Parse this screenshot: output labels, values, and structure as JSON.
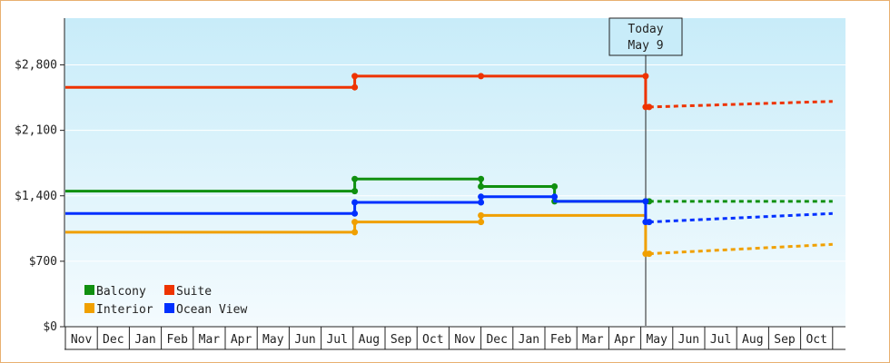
{
  "chart_data": {
    "type": "line",
    "title": "",
    "xlabel": "",
    "ylabel": "",
    "y_ticks": [
      "$0",
      "$700",
      "$1,400",
      "$2,100",
      "$2,800"
    ],
    "ylim": [
      0,
      3300
    ],
    "x_months": [
      "Nov",
      "Dec",
      "Jan",
      "Feb",
      "Mar",
      "Apr",
      "May",
      "Jun",
      "Jul",
      "Aug",
      "Sep",
      "Oct",
      "Nov",
      "Dec",
      "Jan",
      "Feb",
      "Mar",
      "Apr",
      "May",
      "Jun",
      "Jul",
      "Aug",
      "Sep",
      "Oct"
    ],
    "today": {
      "line1": "Today",
      "line2": "May 9",
      "month_index": 18.26
    },
    "legend_position": "bottom-left",
    "grid": "horizontal",
    "series": [
      {
        "name": "Balcony",
        "color": "#109010",
        "history": [
          [
            0,
            1450
          ],
          [
            9.05,
            1450
          ],
          [
            9.05,
            1580
          ],
          [
            13,
            1580
          ],
          [
            13,
            1500
          ],
          [
            15.3,
            1500
          ],
          [
            15.3,
            1340
          ],
          [
            18.15,
            1340
          ],
          [
            18.15,
            1340
          ],
          [
            18.26,
            1340
          ]
        ],
        "markers": [
          [
            9.05,
            1450
          ],
          [
            9.05,
            1580
          ],
          [
            13,
            1580
          ],
          [
            13,
            1500
          ],
          [
            15.3,
            1500
          ],
          [
            15.3,
            1340
          ],
          [
            18.15,
            1340
          ],
          [
            18.26,
            1340
          ]
        ],
        "forecast": [
          [
            18.26,
            1340
          ],
          [
            24,
            1340
          ]
        ]
      },
      {
        "name": "Suite",
        "color": "#ee3300",
        "history": [
          [
            0,
            2560
          ],
          [
            9.05,
            2560
          ],
          [
            9.05,
            2680
          ],
          [
            13,
            2680
          ],
          [
            18.15,
            2680
          ],
          [
            18.15,
            2350
          ],
          [
            18.26,
            2350
          ]
        ],
        "markers": [
          [
            9.05,
            2560
          ],
          [
            9.05,
            2680
          ],
          [
            13,
            2680
          ],
          [
            18.15,
            2680
          ],
          [
            18.15,
            2350
          ],
          [
            18.26,
            2350
          ]
        ],
        "forecast": [
          [
            18.26,
            2350
          ],
          [
            24,
            2410
          ]
        ]
      },
      {
        "name": "Interior",
        "color": "#f0a000",
        "history": [
          [
            0,
            1010
          ],
          [
            9.05,
            1010
          ],
          [
            9.05,
            1120
          ],
          [
            13,
            1120
          ],
          [
            13,
            1190
          ],
          [
            18.15,
            1190
          ],
          [
            18.15,
            780
          ],
          [
            18.26,
            780
          ]
        ],
        "markers": [
          [
            9.05,
            1010
          ],
          [
            9.05,
            1120
          ],
          [
            13,
            1120
          ],
          [
            13,
            1190
          ],
          [
            18.15,
            780
          ],
          [
            18.26,
            780
          ]
        ],
        "forecast": [
          [
            18.26,
            780
          ],
          [
            24,
            880
          ]
        ]
      },
      {
        "name": "Ocean View",
        "color": "#0030ff",
        "history": [
          [
            0,
            1210
          ],
          [
            9.05,
            1210
          ],
          [
            9.05,
            1330
          ],
          [
            13,
            1330
          ],
          [
            13,
            1390
          ],
          [
            15.3,
            1390
          ],
          [
            15.3,
            1340
          ],
          [
            18.15,
            1340
          ],
          [
            18.15,
            1120
          ],
          [
            18.26,
            1120
          ]
        ],
        "markers": [
          [
            9.05,
            1210
          ],
          [
            9.05,
            1330
          ],
          [
            13,
            1330
          ],
          [
            13,
            1390
          ],
          [
            15.3,
            1390
          ],
          [
            18.15,
            1340
          ],
          [
            18.15,
            1120
          ],
          [
            18.26,
            1120
          ]
        ],
        "forecast": [
          [
            18.26,
            1120
          ],
          [
            24,
            1210
          ]
        ]
      }
    ]
  }
}
